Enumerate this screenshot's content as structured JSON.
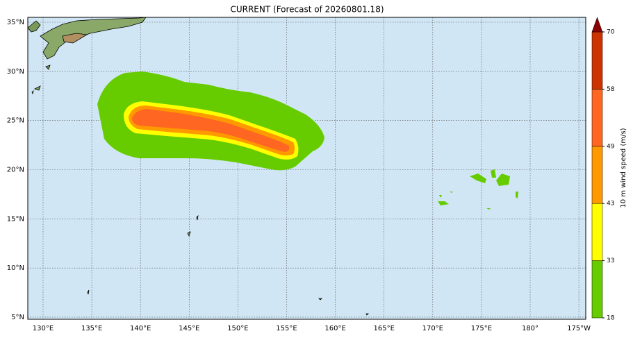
{
  "title": "CURRENT (Forecast of 20260801.18)",
  "map": {
    "lat_labels": [
      "35°N",
      "30°N",
      "25°N",
      "20°N",
      "15°N",
      "10°N",
      "5°N"
    ],
    "lon_labels": [
      "130°E",
      "135°E",
      "140°E",
      "145°E",
      "150°E",
      "155°E",
      "160°E",
      "165°E",
      "170°E",
      "175°E",
      "180°",
      "175°W"
    ]
  },
  "colorbar": {
    "label": "10 m wind speed (m/s)",
    "levels": [
      18,
      33,
      43,
      49,
      58,
      70
    ],
    "colors": [
      "#66cc00",
      "#ffff00",
      "#ff9900",
      "#ff6622",
      "#cc3300"
    ],
    "extend_color": "#8b0000"
  }
}
